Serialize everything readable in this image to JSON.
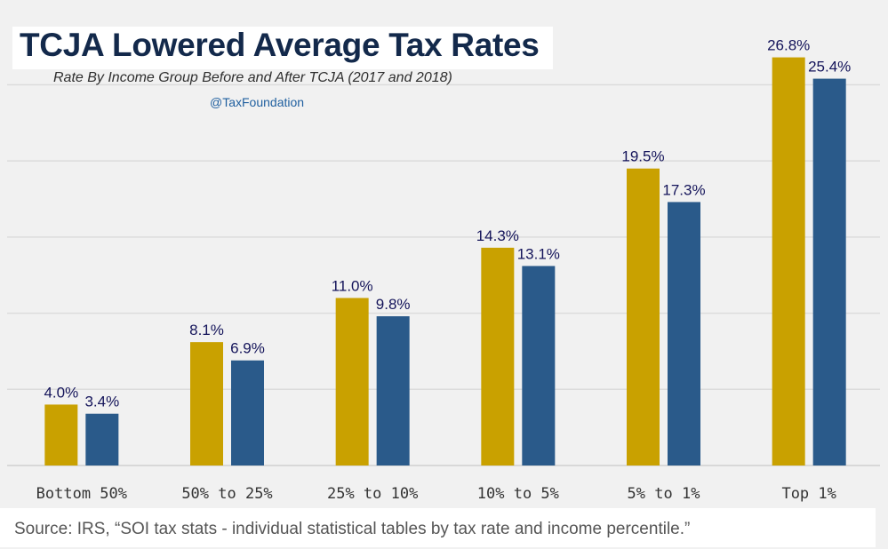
{
  "header": {
    "title": "TCJA Lowered Average Tax Rates",
    "subtitle": "Rate By Income Group Before and After TCJA (2017 and 2018)",
    "handle": "@TaxFoundation"
  },
  "footer": {
    "source": "Source: IRS, “SOI tax stats - individual statistical tables by tax rate and income percentile.”"
  },
  "chart_data": {
    "type": "bar",
    "title": "TCJA Lowered Average Tax Rates",
    "subtitle": "Rate By Income Group Before and After TCJA (2017 and 2018)",
    "xlabel": "",
    "ylabel": "",
    "categories": [
      "Bottom 50%",
      "50% to 25%",
      "25% to 10%",
      "10% to 5%",
      "5% to 1%",
      "Top 1%"
    ],
    "series": [
      {
        "color": "#c9a100",
        "values": [
          4.0,
          8.1,
          11.0,
          14.3,
          19.5,
          26.8
        ],
        "labels": [
          "4.0%",
          "8.1%",
          "11.0%",
          "14.3%",
          "19.5%",
          "26.8%"
        ]
      },
      {
        "color": "#2a5a8a",
        "values": [
          3.4,
          6.9,
          9.8,
          13.1,
          17.3,
          25.4
        ],
        "labels": [
          "3.4%",
          "6.9%",
          "9.8%",
          "13.1%",
          "17.3%",
          "25.4%"
        ]
      }
    ],
    "ylim": [
      0,
      28
    ],
    "grid": true,
    "gridline_color": "#dcdcdc",
    "legend": "none"
  }
}
